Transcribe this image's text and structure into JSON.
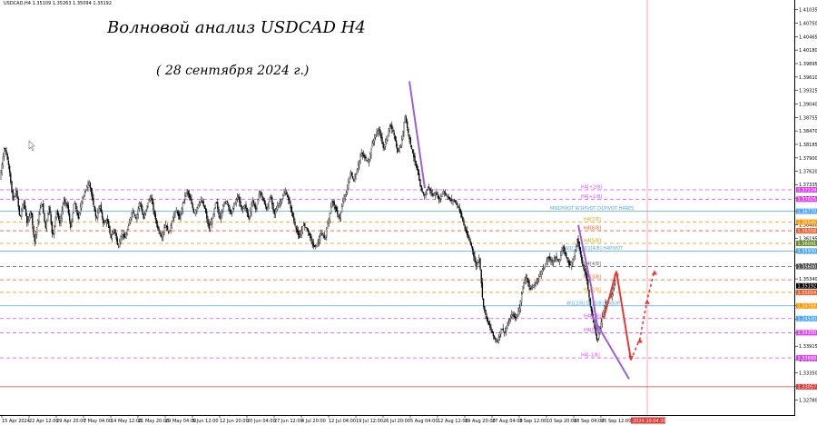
{
  "symbol_info": "USDCAD,H4  1.35109 1.35263 1.35094 1.35192",
  "title": "Волновой анализ USDCAD H4",
  "subtitle": "( 28 сентября 2024 г.)",
  "chart_data": {
    "type": "candlestick",
    "symbol": "USDCAD",
    "timeframe": "H4",
    "ohlc_last": {
      "open": 1.35109,
      "high": 1.35263,
      "low": 1.35094,
      "close": 1.35192
    },
    "ylim": [
      1.3244,
      1.4124
    ],
    "y_ticks": [
      "1.41035",
      "1.40750",
      "1.40465",
      "1.40180",
      "1.39895",
      "1.39610",
      "1.39325",
      "1.39040",
      "1.38755",
      "1.38470",
      "1.38185",
      "1.37900",
      "1.37620",
      "1.37335",
      "1.37050",
      "1.36765",
      "1.36480",
      "1.36195",
      "1.35910",
      "1.35625",
      "1.35340",
      "1.35055",
      "1.34770",
      "1.34485",
      "1.34200",
      "1.33915",
      "1.33630",
      "1.33350",
      "1.33065",
      "1.32780"
    ],
    "x_ticks": [
      "15 Apr 2024",
      "22 Apr 12:00",
      "29 Apr 20:00",
      "7 May 04:00",
      "14 May 12:00",
      "21 May 20:00",
      "29 May 04:00",
      "5 Jun 12:00",
      "12 Jun 20:00",
      "20 Jun 04:00",
      "27 Jun 12:00",
      "4 Jul 20:00",
      "12 Jul 04:00",
      "19 Jul 12:00",
      "26 Jul 20:00",
      "5 Aug 04:00",
      "12 Aug 12:00",
      "19 Aug 20:00",
      "27 Aug 04:00",
      "3 Sep 12:00",
      "10 Sep 20:00",
      "18 Sep 04:00",
      "25 Sep 12:00"
    ],
    "close_path": [
      [
        0,
        1.3745
      ],
      [
        5,
        1.3815
      ],
      [
        10,
        1.377
      ],
      [
        14,
        1.37
      ],
      [
        18,
        1.372
      ],
      [
        22,
        1.366
      ],
      [
        26,
        1.37
      ],
      [
        30,
        1.365
      ],
      [
        34,
        1.368
      ],
      [
        38,
        1.361
      ],
      [
        42,
        1.366
      ],
      [
        46,
        1.37
      ],
      [
        50,
        1.364
      ],
      [
        54,
        1.369
      ],
      [
        58,
        1.362
      ],
      [
        62,
        1.368
      ],
      [
        66,
        1.365
      ],
      [
        70,
        1.37
      ],
      [
        74,
        1.369
      ],
      [
        78,
        1.364
      ],
      [
        82,
        1.37
      ],
      [
        86,
        1.366
      ],
      [
        90,
        1.37
      ],
      [
        94,
        1.372
      ],
      [
        98,
        1.374
      ],
      [
        102,
        1.37
      ],
      [
        106,
        1.366
      ],
      [
        110,
        1.369
      ],
      [
        114,
        1.365
      ],
      [
        118,
        1.366
      ],
      [
        122,
        1.362
      ],
      [
        126,
        1.364
      ],
      [
        130,
        1.36
      ],
      [
        134,
        1.363
      ],
      [
        138,
        1.362
      ],
      [
        142,
        1.365
      ],
      [
        146,
        1.368
      ],
      [
        150,
        1.366
      ],
      [
        154,
        1.37
      ],
      [
        158,
        1.366
      ],
      [
        162,
        1.369
      ],
      [
        166,
        1.371
      ],
      [
        170,
        1.367
      ],
      [
        174,
        1.364
      ],
      [
        178,
        1.362
      ],
      [
        182,
        1.365
      ],
      [
        186,
        1.363
      ],
      [
        190,
        1.366
      ],
      [
        194,
        1.368
      ],
      [
        198,
        1.366
      ],
      [
        202,
        1.37
      ],
      [
        206,
        1.372
      ],
      [
        210,
        1.37
      ],
      [
        214,
        1.367
      ],
      [
        218,
        1.369
      ],
      [
        222,
        1.37
      ],
      [
        226,
        1.368
      ],
      [
        230,
        1.364
      ],
      [
        234,
        1.366
      ],
      [
        238,
        1.37
      ],
      [
        242,
        1.366
      ],
      [
        246,
        1.369
      ],
      [
        250,
        1.37
      ],
      [
        254,
        1.367
      ],
      [
        258,
        1.369
      ],
      [
        262,
        1.371
      ],
      [
        266,
        1.368
      ],
      [
        270,
        1.369
      ],
      [
        274,
        1.366
      ],
      [
        278,
        1.37
      ],
      [
        282,
        1.368
      ],
      [
        286,
        1.372
      ],
      [
        290,
        1.37
      ],
      [
        294,
        1.368
      ],
      [
        298,
        1.371
      ],
      [
        302,
        1.367
      ],
      [
        306,
        1.369
      ],
      [
        310,
        1.37
      ],
      [
        314,
        1.372
      ],
      [
        318,
        1.37
      ],
      [
        322,
        1.367
      ],
      [
        326,
        1.364
      ],
      [
        330,
        1.362
      ],
      [
        334,
        1.365
      ],
      [
        338,
        1.364
      ],
      [
        342,
        1.362
      ],
      [
        346,
        1.36
      ],
      [
        350,
        1.361
      ],
      [
        354,
        1.363
      ],
      [
        358,
        1.362
      ],
      [
        362,
        1.366
      ],
      [
        366,
        1.37
      ],
      [
        370,
        1.368
      ],
      [
        374,
        1.366
      ],
      [
        378,
        1.37
      ],
      [
        382,
        1.372
      ],
      [
        386,
        1.376
      ],
      [
        390,
        1.374
      ],
      [
        394,
        1.377
      ],
      [
        398,
        1.38
      ],
      [
        402,
        1.379
      ],
      [
        406,
        1.378
      ],
      [
        410,
        1.382
      ],
      [
        414,
        1.384
      ],
      [
        418,
        1.385
      ],
      [
        422,
        1.381
      ],
      [
        426,
        1.383
      ],
      [
        430,
        1.386
      ],
      [
        434,
        1.384
      ],
      [
        438,
        1.38
      ],
      [
        442,
        1.382
      ],
      [
        446,
        1.388
      ],
      [
        448,
        1.386
      ],
      [
        452,
        1.382
      ],
      [
        456,
        1.379
      ],
      [
        460,
        1.376
      ],
      [
        464,
        1.372
      ],
      [
        468,
        1.371
      ],
      [
        472,
        1.373
      ],
      [
        476,
        1.371
      ],
      [
        480,
        1.3715
      ],
      [
        484,
        1.37
      ],
      [
        488,
        1.372
      ],
      [
        492,
        1.371
      ],
      [
        496,
        1.37
      ],
      [
        500,
        1.37
      ],
      [
        504,
        1.369
      ],
      [
        508,
        1.367
      ],
      [
        512,
        1.364
      ],
      [
        516,
        1.362
      ],
      [
        520,
        1.36
      ],
      [
        524,
        1.356
      ],
      [
        528,
        1.358
      ],
      [
        532,
        1.348
      ],
      [
        536,
        1.345
      ],
      [
        540,
        1.343
      ],
      [
        544,
        1.341
      ],
      [
        548,
        1.34
      ],
      [
        552,
        1.343
      ],
      [
        556,
        1.342
      ],
      [
        560,
        1.344
      ],
      [
        564,
        1.346
      ],
      [
        568,
        1.345
      ],
      [
        572,
        1.347
      ],
      [
        576,
        1.352
      ],
      [
        580,
        1.354
      ],
      [
        584,
        1.351
      ],
      [
        588,
        1.352
      ],
      [
        592,
        1.353
      ],
      [
        596,
        1.355
      ],
      [
        600,
        1.356
      ],
      [
        604,
        1.358
      ],
      [
        608,
        1.357
      ],
      [
        612,
        1.358
      ],
      [
        616,
        1.357
      ],
      [
        620,
        1.36
      ],
      [
        624,
        1.358
      ],
      [
        628,
        1.356
      ],
      [
        632,
        1.358
      ],
      [
        636,
        1.362
      ],
      [
        640,
        1.358
      ],
      [
        642,
        1.356
      ],
      [
        646,
        1.354
      ],
      [
        650,
        1.348
      ],
      [
        654,
        1.344
      ],
      [
        658,
        1.34
      ],
      [
        662,
        1.344
      ],
      [
        666,
        1.348
      ],
      [
        670,
        1.349
      ],
      [
        674,
        1.35
      ],
      [
        676,
        1.352
      ],
      [
        678,
        1.353
      ]
    ],
    "levels": [
      {
        "value": 1.37224,
        "label": "H4[+2/8]",
        "color": "#e040fb",
        "style": "dash",
        "label_x": 640
      },
      {
        "value": 1.37025,
        "label": "H4[+1/8]",
        "color": "#e040fb",
        "style": "dash",
        "label_x": 640
      },
      {
        "value": 1.3677,
        "label": "MN1PIVOT W1PIVOT D1PIVOT H4RES",
        "color": "#4da6ff",
        "style": "solid",
        "label_x": 606
      },
      {
        "value": 1.3654,
        "label": "H4[7/8]",
        "color": "#ff9800",
        "style": "dash",
        "label_x": 643
      },
      {
        "value": 1.36358,
        "label": "H4[6/8]",
        "color": "#ff5722",
        "style": "dash",
        "label_x": 643
      },
      {
        "value": 1.36091,
        "label": "H4[5/8]",
        "color": "#c8a200",
        "style": "dash",
        "label_x": 643
      },
      {
        "value": 1.3593,
        "label": "W1[3/8] D1[4/8] H4PIVOT",
        "color": "#4da6ff",
        "style": "solid",
        "label_x": 622
      },
      {
        "value": 1.356,
        "label": "H4[4/8]",
        "color": "#606060",
        "style": "dash",
        "label_x": 643
      },
      {
        "value": 1.3532,
        "label": "H4[3/8]",
        "color": "#ff5722",
        "style": "dash",
        "label_x": 643
      },
      {
        "value": 1.35054,
        "label": "H4[2/8]",
        "color": "#ff9800",
        "style": "dash",
        "label_x": 643
      },
      {
        "value": 1.34769,
        "label": "W1[2/8] D1[3/8] H4SUP",
        "color": "#4da6ff",
        "style": "solid",
        "label_x": 624
      },
      {
        "value": 1.345,
        "label": "H4[1/8]",
        "color": "#e040fb",
        "style": "dash",
        "label_x": 643
      },
      {
        "value": 1.342,
        "label": "H4[0/8]",
        "color": "#e040fb",
        "style": "dash",
        "label_x": 643
      },
      {
        "value": 1.33668,
        "label": "H4[-1/8]",
        "color": "#e040fb",
        "style": "dash",
        "label_x": 640
      },
      {
        "value": 1.33057,
        "label": "",
        "color": "#e53935",
        "style": "solid",
        "label_x": 0
      }
    ],
    "price_tags": [
      {
        "value": 1.37224,
        "text": "1.37224",
        "color": "#e040fb"
      },
      {
        "value": 1.37025,
        "text": "1.37025",
        "color": "#e040fb"
      },
      {
        "value": 1.3677,
        "text": "1.36770",
        "color": "#4da6ff"
      },
      {
        "value": 1.3654,
        "text": "1.36540",
        "color": "#ff9800"
      },
      {
        "value": 1.36358,
        "text": "1.36358",
        "color": "#ff5722"
      },
      {
        "value": 1.36091,
        "text": "1.36091",
        "color": "#6b8e23"
      },
      {
        "value": 1.3593,
        "text": "1.35930",
        "color": "#4da6ff"
      },
      {
        "value": 1.356,
        "text": "1.35600",
        "color": "#505050"
      },
      {
        "value": 1.35192,
        "text": "1.35192",
        "color": "#000000"
      },
      {
        "value": 1.35054,
        "text": "1.35054",
        "color": "#ff5722"
      },
      {
        "value": 1.34769,
        "text": "1.34769",
        "color": "#ff9800"
      },
      {
        "value": 1.345,
        "text": "1.34500",
        "color": "#4da6ff"
      },
      {
        "value": 1.342,
        "text": "1.34200",
        "color": "#e040fb"
      },
      {
        "value": 1.33668,
        "text": "1.33668",
        "color": "#e040fb"
      },
      {
        "value": 1.33057,
        "text": "1.33057",
        "color": "#e53935"
      }
    ],
    "date_marker": {
      "text": "2024.10.04 20:00",
      "color": "#e53935"
    },
    "purple_waves": [
      [
        [
          451,
          1.3952
        ],
        [
          468,
          1.3726
        ]
      ],
      [
        [
          637,
          1.3648
        ],
        [
          651,
          1.352
        ],
        [
          659,
          1.3421
        ]
      ],
      [
        [
          651,
          1.346
        ],
        [
          693,
          1.3322
        ]
      ]
    ],
    "forecast_solid": [
      [
        665,
        1.345
      ],
      [
        679,
        1.355
      ],
      [
        695,
        1.3362
      ]
    ],
    "forecast_dashed": [
      [
        695,
        1.3362
      ],
      [
        705,
        1.3408
      ],
      [
        713,
        1.349
      ],
      [
        721,
        1.3552
      ]
    ],
    "colors": {
      "candle": "#000000",
      "wave": "#9c5fd6",
      "forecast": "#e53935",
      "cursor_line": "#ffaaaa"
    }
  }
}
